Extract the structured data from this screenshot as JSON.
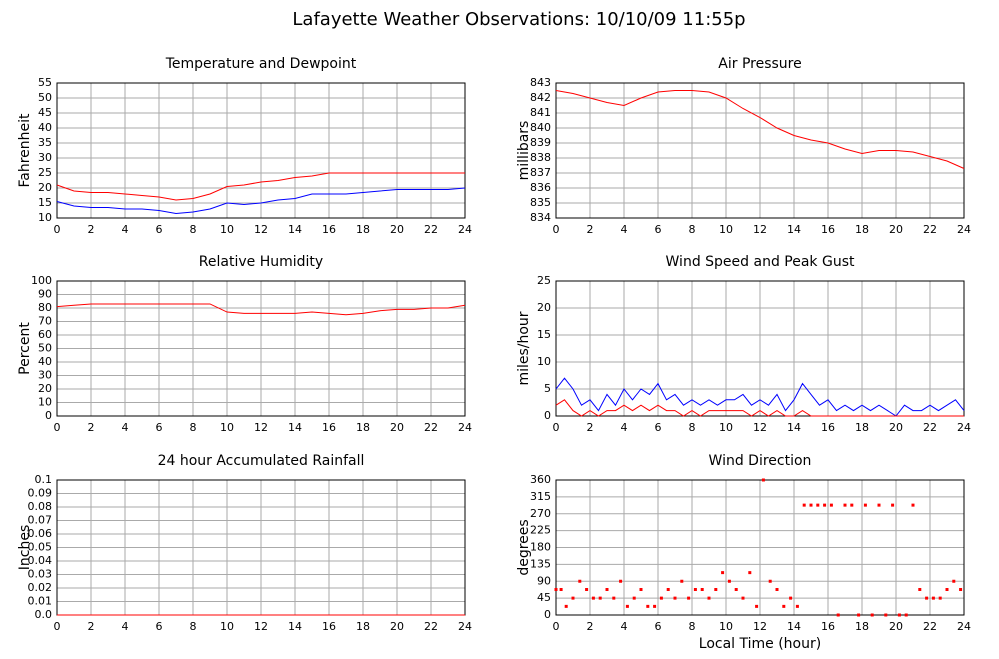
{
  "title": "Lafayette Weather Observations: 10/10/09 11:55p",
  "chart_data": [
    {
      "type": "line",
      "title": "Temperature and Dewpoint",
      "ylabel": "Fahrenheit",
      "x": [
        0,
        1,
        2,
        3,
        4,
        5,
        6,
        7,
        8,
        9,
        10,
        11,
        12,
        13,
        14,
        15,
        16,
        17,
        18,
        19,
        20,
        21,
        22,
        23,
        24
      ],
      "series": [
        {
          "name": "Temperature",
          "color": "#ff0000",
          "values": [
            21,
            19,
            18.5,
            18.5,
            18,
            17.5,
            17,
            16,
            16.5,
            18,
            20.5,
            21,
            22,
            22.5,
            23.5,
            24,
            25,
            25,
            25,
            25,
            25,
            25,
            25,
            25,
            25
          ]
        },
        {
          "name": "Dewpoint",
          "color": "#0000ff",
          "values": [
            15.5,
            14,
            13.5,
            13.5,
            13,
            13,
            12.5,
            11.5,
            12,
            13,
            15,
            14.5,
            15,
            16,
            16.5,
            18,
            18,
            18,
            18.5,
            19,
            19.5,
            19.5,
            19.5,
            19.5,
            20
          ]
        }
      ],
      "xlim": [
        0,
        24
      ],
      "xticks": [
        0,
        2,
        4,
        6,
        8,
        10,
        12,
        14,
        16,
        18,
        20,
        22,
        24
      ],
      "ylim": [
        10,
        55
      ],
      "yticks": [
        10,
        15,
        20,
        25,
        30,
        35,
        40,
        45,
        50,
        55
      ],
      "grid": true
    },
    {
      "type": "line",
      "title": "Air Pressure",
      "ylabel": "millibars",
      "x": [
        0,
        1,
        2,
        3,
        4,
        5,
        6,
        7,
        8,
        9,
        10,
        11,
        12,
        13,
        14,
        15,
        16,
        17,
        18,
        19,
        20,
        21,
        22,
        23,
        24
      ],
      "series": [
        {
          "name": "Pressure",
          "color": "#ff0000",
          "values": [
            842.5,
            842.3,
            842,
            841.7,
            841.5,
            842,
            842.4,
            842.5,
            842.5,
            842.4,
            842,
            841.3,
            840.7,
            840,
            839.5,
            839.2,
            839,
            838.6,
            838.3,
            838.5,
            838.5,
            838.4,
            838.1,
            837.8,
            837.3
          ]
        }
      ],
      "xlim": [
        0,
        24
      ],
      "xticks": [
        0,
        2,
        4,
        6,
        8,
        10,
        12,
        14,
        16,
        18,
        20,
        22,
        24
      ],
      "ylim": [
        834,
        843
      ],
      "yticks": [
        834,
        835,
        836,
        837,
        838,
        839,
        840,
        841,
        842,
        843
      ],
      "grid": true
    },
    {
      "type": "line",
      "title": "Relative Humidity",
      "ylabel": "Percent",
      "x": [
        0,
        1,
        2,
        3,
        4,
        5,
        6,
        7,
        8,
        9,
        10,
        11,
        12,
        13,
        14,
        15,
        16,
        17,
        18,
        19,
        20,
        21,
        22,
        23,
        24
      ],
      "series": [
        {
          "name": "Humidity",
          "color": "#ff0000",
          "values": [
            81,
            82,
            83,
            83,
            83,
            83,
            83,
            83,
            83,
            83,
            77,
            76,
            76,
            76,
            76,
            77,
            76,
            75,
            76,
            78,
            79,
            79,
            80,
            80,
            82
          ]
        }
      ],
      "xlim": [
        0,
        24
      ],
      "xticks": [
        0,
        2,
        4,
        6,
        8,
        10,
        12,
        14,
        16,
        18,
        20,
        22,
        24
      ],
      "ylim": [
        0,
        100
      ],
      "yticks": [
        0,
        10,
        20,
        30,
        40,
        50,
        60,
        70,
        80,
        90,
        100
      ],
      "grid": true
    },
    {
      "type": "line",
      "title": "Wind Speed and Peak Gust",
      "ylabel": "miles/hour",
      "x": [
        0,
        0.5,
        1,
        1.5,
        2,
        2.5,
        3,
        3.5,
        4,
        4.5,
        5,
        5.5,
        6,
        6.5,
        7,
        7.5,
        8,
        8.5,
        9,
        9.5,
        10,
        10.5,
        11,
        11.5,
        12,
        12.5,
        13,
        13.5,
        14,
        14.5,
        15,
        15.5,
        16,
        16.5,
        17,
        17.5,
        18,
        18.5,
        19,
        19.5,
        20,
        20.5,
        21,
        21.5,
        22,
        22.5,
        23,
        23.5,
        24
      ],
      "series": [
        {
          "name": "Peak Gust",
          "color": "#0000ff",
          "values": [
            5,
            7,
            5,
            2,
            3,
            1,
            4,
            2,
            5,
            3,
            5,
            4,
            6,
            3,
            4,
            2,
            3,
            2,
            3,
            2,
            3,
            3,
            4,
            2,
            3,
            2,
            4,
            1,
            3,
            6,
            4,
            2,
            3,
            1,
            2,
            1,
            2,
            1,
            2,
            1,
            0,
            2,
            1,
            1,
            2,
            1,
            2,
            3,
            1
          ]
        },
        {
          "name": "Wind Speed",
          "color": "#ff0000",
          "values": [
            2,
            3,
            1,
            0,
            1,
            0,
            1,
            1,
            2,
            1,
            2,
            1,
            2,
            1,
            1,
            0,
            1,
            0,
            1,
            1,
            1,
            1,
            1,
            0,
            1,
            0,
            1,
            0,
            0,
            1,
            0,
            0,
            0,
            0,
            0,
            0,
            0,
            0,
            0,
            0,
            0,
            0,
            0,
            0,
            0,
            0,
            0,
            0,
            0
          ]
        }
      ],
      "xlim": [
        0,
        24
      ],
      "xticks": [
        0,
        2,
        4,
        6,
        8,
        10,
        12,
        14,
        16,
        18,
        20,
        22,
        24
      ],
      "ylim": [
        0,
        25
      ],
      "yticks": [
        0,
        5,
        10,
        15,
        20,
        25
      ],
      "grid": true
    },
    {
      "type": "line",
      "title": "24 hour Accumulated Rainfall",
      "ylabel": "Inches",
      "x": [
        0,
        24
      ],
      "series": [
        {
          "name": "Rainfall",
          "color": "#ff0000",
          "values": [
            0,
            0
          ]
        }
      ],
      "xlim": [
        0,
        24
      ],
      "xticks": [
        0,
        2,
        4,
        6,
        8,
        10,
        12,
        14,
        16,
        18,
        20,
        22,
        24
      ],
      "ylim": [
        0,
        0.1
      ],
      "yticks": [
        {
          "value": 0,
          "label": "0.0"
        },
        0.01,
        0.02,
        0.03,
        0.04,
        0.05,
        0.06,
        0.07,
        0.08,
        0.09,
        0.1
      ],
      "grid": true
    },
    {
      "type": "scatter",
      "title": "Wind Direction",
      "ylabel": "degrees",
      "xlabel": "Local Time (hour)",
      "x": [
        0,
        0.3,
        0.6,
        1,
        1.4,
        1.8,
        2.2,
        2.6,
        3,
        3.4,
        3.8,
        4.2,
        4.6,
        5,
        5.4,
        5.8,
        6.2,
        6.6,
        7,
        7.4,
        7.8,
        8.2,
        8.6,
        9,
        9.4,
        9.8,
        10.2,
        10.6,
        11,
        11.4,
        11.8,
        12.2,
        12.6,
        13,
        13.4,
        13.8,
        14.2,
        14.6,
        15,
        15.4,
        15.8,
        16.2,
        16.6,
        17,
        17.4,
        17.8,
        18.2,
        18.6,
        19,
        19.4,
        19.8,
        20.2,
        20.6,
        21,
        21.4,
        21.8,
        22.2,
        22.6,
        23,
        23.4,
        23.8
      ],
      "series": [
        {
          "name": "Direction",
          "color": "#ff0000",
          "values": [
            68,
            68,
            23,
            45,
            90,
            68,
            45,
            45,
            68,
            45,
            90,
            23,
            45,
            68,
            23,
            23,
            45,
            68,
            45,
            90,
            45,
            68,
            68,
            45,
            68,
            113,
            90,
            68,
            45,
            113,
            23,
            360,
            90,
            68,
            23,
            45,
            23,
            293,
            293,
            293,
            293,
            293,
            0,
            293,
            293,
            0,
            293,
            0,
            293,
            0,
            293,
            0,
            0,
            293,
            68,
            45,
            45,
            45,
            68,
            90,
            68
          ]
        }
      ],
      "xlim": [
        0,
        24
      ],
      "xticks": [
        0,
        2,
        4,
        6,
        8,
        10,
        12,
        14,
        16,
        18,
        20,
        22,
        24
      ],
      "ylim": [
        0,
        360
      ],
      "yticks": [
        0,
        45,
        90,
        135,
        180,
        225,
        270,
        315,
        360
      ],
      "grid": true
    }
  ]
}
